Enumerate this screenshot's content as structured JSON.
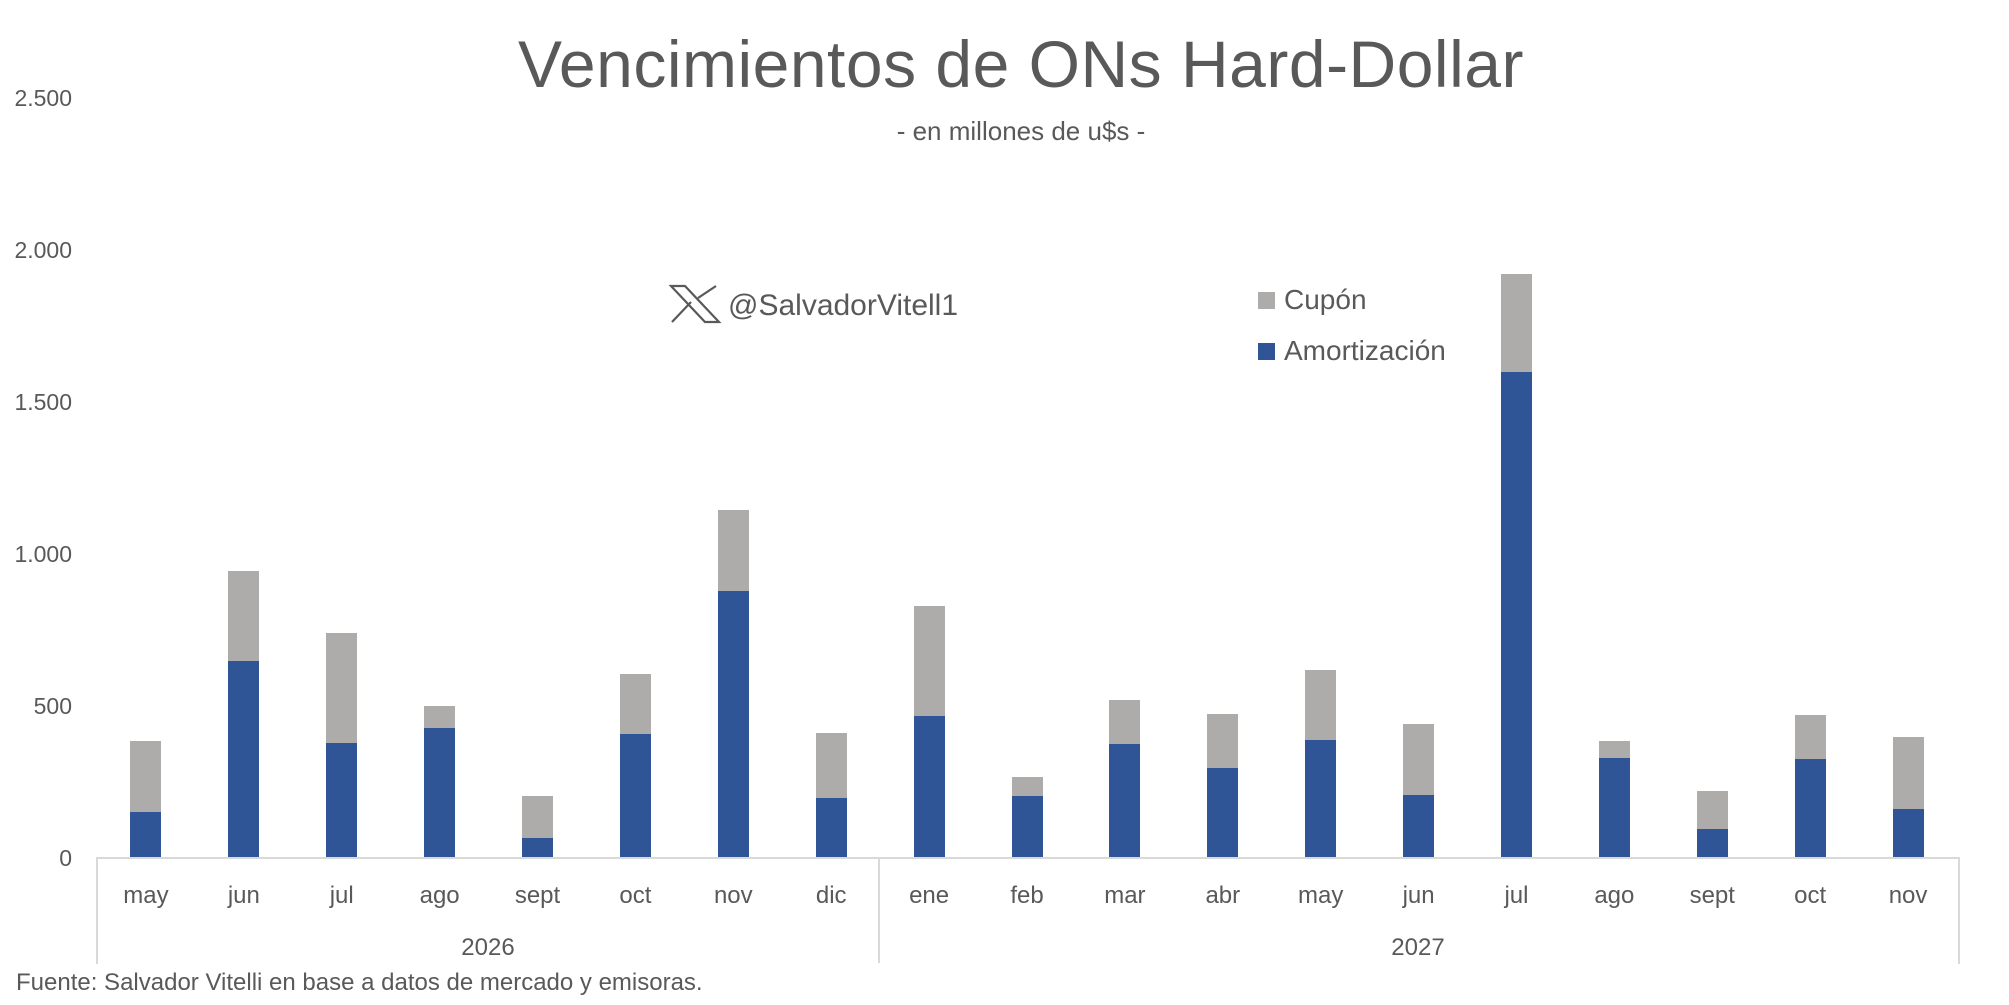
{
  "title": "Vencimientos de ONs Hard-Dollar",
  "subtitle": "- en millones de u$s -",
  "watermark": {
    "icon": "x-logo-icon",
    "handle": "@SalvadorVitell1"
  },
  "footnote": "Fuente: Salvador Vitelli en base a datos de mercado y emisoras.",
  "colors": {
    "cupon": "#AEABAB",
    "amortizacion": "#2F5597",
    "text": "#595959",
    "axis": "#D9D9D9"
  },
  "legend": [
    {
      "label": "Cupón",
      "color": "#AEABAB"
    },
    {
      "label": "Amortización",
      "color": "#2F5597"
    }
  ],
  "y_ticks": [
    "2.500",
    "2.000",
    "1.500",
    "1.000",
    "500",
    "0"
  ],
  "years": [
    {
      "label": "2026",
      "months": 8
    },
    {
      "label": "2027",
      "months": 11
    }
  ],
  "chart_data": {
    "type": "bar",
    "stacked": true,
    "title": "Vencimientos de ONs Hard-Dollar",
    "subtitle": "- en millones de u$s -",
    "xlabel": "",
    "ylabel": "",
    "ylim": [
      0,
      2500
    ],
    "y_tick_values": [
      0,
      500,
      1000,
      1500,
      2000,
      2500
    ],
    "grid": false,
    "legend_position": "top-right (inside plot)",
    "categories": [
      "may",
      "jun",
      "jul",
      "ago",
      "sept",
      "oct",
      "nov",
      "dic",
      "ene",
      "feb",
      "mar",
      "abr",
      "may",
      "jun",
      "jul",
      "ago",
      "sept",
      "oct",
      "nov"
    ],
    "category_groups": [
      {
        "label": "2026",
        "categories": [
          "may",
          "jun",
          "jul",
          "ago",
          "sept",
          "oct",
          "nov",
          "dic"
        ]
      },
      {
        "label": "2027",
        "categories": [
          "ene",
          "feb",
          "mar",
          "abr",
          "may",
          "jun",
          "jul",
          "ago",
          "sept",
          "oct",
          "nov"
        ]
      }
    ],
    "series": [
      {
        "name": "Amortización",
        "color": "#2F5597",
        "values": [
          151,
          648,
          378,
          428,
          66,
          408,
          878,
          197,
          467,
          204,
          375,
          296,
          388,
          207,
          1599,
          329,
          95,
          326,
          161
        ]
      },
      {
        "name": "Cupón",
        "color": "#AEABAB",
        "values": [
          234,
          296,
          362,
          72,
          138,
          197,
          267,
          214,
          362,
          62,
          145,
          178,
          230,
          234,
          322,
          56,
          125,
          144,
          237
        ]
      }
    ],
    "totals": [
      385,
      944,
      740,
      500,
      204,
      605,
      1145,
      411,
      829,
      266,
      520,
      474,
      618,
      441,
      1921,
      385,
      220,
      470,
      398
    ]
  }
}
